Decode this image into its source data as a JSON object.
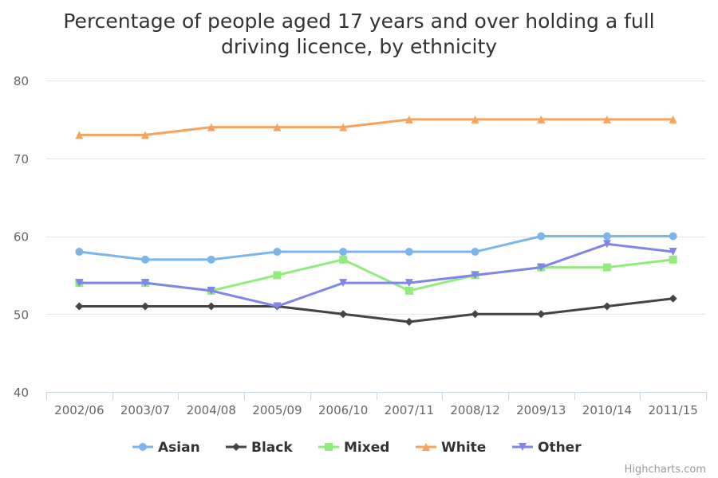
{
  "chart_data": {
    "type": "line",
    "title_lines": [
      "Percentage of people aged 17 years and over holding a full",
      "driving licence, by ethnicity"
    ],
    "categories": [
      "2002/06",
      "2003/07",
      "2004/08",
      "2005/09",
      "2006/10",
      "2007/11",
      "2008/12",
      "2009/13",
      "2010/14",
      "2011/15"
    ],
    "ylim": [
      40,
      80
    ],
    "yticks": [
      40,
      50,
      60,
      70,
      80
    ],
    "grid": true,
    "legend_position": "bottom-center",
    "series": [
      {
        "name": "Asian",
        "color": "#7cb5ec",
        "marker": "circle",
        "values": [
          58,
          57,
          57,
          58,
          58,
          58,
          58,
          60,
          60,
          60
        ]
      },
      {
        "name": "Black",
        "color": "#434348",
        "marker": "diamond",
        "values": [
          51,
          51,
          51,
          51,
          50,
          49,
          50,
          50,
          51,
          52
        ]
      },
      {
        "name": "Mixed",
        "color": "#90ed7d",
        "marker": "square",
        "values": [
          54,
          54,
          53,
          55,
          57,
          53,
          55,
          56,
          56,
          57
        ]
      },
      {
        "name": "White",
        "color": "#f7a35c",
        "marker": "triangle",
        "values": [
          73,
          73,
          74,
          74,
          74,
          75,
          75,
          75,
          75,
          75
        ]
      },
      {
        "name": "Other",
        "color": "#8085e9",
        "marker": "triangle-down",
        "values": [
          54,
          54,
          53,
          51,
          54,
          54,
          55,
          56,
          59,
          58
        ]
      }
    ]
  },
  "credits": "Highcharts.com"
}
